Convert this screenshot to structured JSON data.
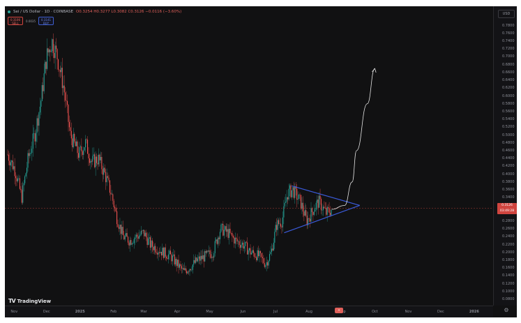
{
  "header": {
    "symbol": "Sei / US Dollar · 1D · COINBASE",
    "ohlc": "O0.3254 H0.3277 L0.3082 C0.3126 −0.0116 (−3.60%)",
    "sell_button": "0.3106\nSELL",
    "buy_button": "0.3141\nBUY",
    "spread": "0.0035"
  },
  "price_axis": {
    "currency": "USD",
    "last_price": "0.3126",
    "last_price_sub": "03:49:28",
    "ticks": [
      "0.7800",
      "0.7600",
      "0.7400",
      "0.7200",
      "0.7000",
      "0.6800",
      "0.6600",
      "0.6400",
      "0.6200",
      "0.6000",
      "0.5800",
      "0.5600",
      "0.5400",
      "0.5200",
      "0.5000",
      "0.4800",
      "0.4600",
      "0.4400",
      "0.4200",
      "0.4000",
      "0.3800",
      "0.3600",
      "0.3400",
      "0.3200",
      "0.3000",
      "0.2800",
      "0.2600",
      "0.2400",
      "0.2200",
      "0.2000",
      "0.1800",
      "0.1600",
      "0.1400",
      "0.1200",
      "0.1000",
      "0.0800"
    ]
  },
  "time_axis": {
    "ticks": [
      "Nov",
      "Dec",
      "2025",
      "Feb",
      "Mar",
      "Apr",
      "May",
      "Jun",
      "Jul",
      "Aug",
      "Sep",
      "Oct",
      "Nov",
      "Dec",
      "2026"
    ]
  },
  "branding": {
    "logo_text": "TradingView",
    "logo_mark": "TV"
  },
  "colors": {
    "background": "#111112",
    "up": "#26a69a",
    "down": "#ef5350",
    "triangle": "#3b5bdb",
    "projection": "#e6e6e6",
    "last_price": "#d0453f"
  },
  "icons": {
    "settings": "gear-icon",
    "realtime": "go-to-realtime-icon"
  },
  "chart_data": {
    "type": "candlestick",
    "title": "Sei / US Dollar · 1D · COINBASE",
    "x_ticks": [
      "Nov",
      "Dec",
      "2025",
      "Feb",
      "Mar",
      "Apr",
      "May",
      "Jun",
      "Jul",
      "Aug",
      "Sep",
      "Oct",
      "Nov",
      "Dec",
      "2026"
    ],
    "ylim": [
      0.08,
      0.79
    ],
    "price_path": [
      [
        "2024-10-26",
        0.45
      ],
      [
        "2024-11-02",
        0.41
      ],
      [
        "2024-11-08",
        0.34
      ],
      [
        "2024-11-14",
        0.44
      ],
      [
        "2024-11-20",
        0.5
      ],
      [
        "2024-11-26",
        0.59
      ],
      [
        "2024-12-01",
        0.7
      ],
      [
        "2024-12-06",
        0.74
      ],
      [
        "2024-12-11",
        0.7
      ],
      [
        "2024-12-17",
        0.62
      ],
      [
        "2024-12-23",
        0.5
      ],
      [
        "2024-12-31",
        0.45
      ],
      [
        "2025-01-06",
        0.48
      ],
      [
        "2025-01-12",
        0.43
      ],
      [
        "2025-01-18",
        0.44
      ],
      [
        "2025-01-24",
        0.4
      ],
      [
        "2025-01-30",
        0.35
      ],
      [
        "2025-02-04",
        0.29
      ],
      [
        "2025-02-10",
        0.24
      ],
      [
        "2025-02-16",
        0.23
      ],
      [
        "2025-02-22",
        0.24
      ],
      [
        "2025-03-01",
        0.25
      ],
      [
        "2025-03-07",
        0.22
      ],
      [
        "2025-03-13",
        0.21
      ],
      [
        "2025-03-19",
        0.2
      ],
      [
        "2025-03-26",
        0.19
      ],
      [
        "2025-04-01",
        0.17
      ],
      [
        "2025-04-07",
        0.15
      ],
      [
        "2025-04-12",
        0.16
      ],
      [
        "2025-04-20",
        0.18
      ],
      [
        "2025-04-27",
        0.19
      ],
      [
        "2025-05-04",
        0.2
      ],
      [
        "2025-05-11",
        0.26
      ],
      [
        "2025-05-18",
        0.25
      ],
      [
        "2025-05-25",
        0.23
      ],
      [
        "2025-06-01",
        0.22
      ],
      [
        "2025-06-08",
        0.2
      ],
      [
        "2025-06-16",
        0.19
      ],
      [
        "2025-06-22",
        0.17
      ],
      [
        "2025-06-27",
        0.2
      ],
      [
        "2025-07-02",
        0.27
      ],
      [
        "2025-07-07",
        0.28
      ],
      [
        "2025-07-12",
        0.35
      ],
      [
        "2025-07-17",
        0.36
      ],
      [
        "2025-07-24",
        0.33
      ],
      [
        "2025-07-30",
        0.28
      ],
      [
        "2025-08-05",
        0.31
      ],
      [
        "2025-08-10",
        0.33
      ],
      [
        "2025-08-17",
        0.3
      ],
      [
        "2025-08-22",
        0.31
      ]
    ],
    "triangle_pattern": {
      "upper_line": [
        [
          "2025-07-16",
          0.37
        ],
        [
          "2025-09-17",
          0.32
        ]
      ],
      "lower_line": [
        [
          "2025-07-09",
          0.25
        ],
        [
          "2025-09-17",
          0.32
        ]
      ]
    },
    "projection_path": [
      [
        "2025-08-22",
        0.31
      ],
      [
        "2025-09-03",
        0.32
      ],
      [
        "2025-09-10",
        0.38
      ],
      [
        "2025-09-14",
        0.46
      ],
      [
        "2025-09-24",
        0.58
      ],
      [
        "2025-10-01",
        0.67
      ]
    ],
    "last_price": 0.3126,
    "grid": false,
    "legend": "none"
  }
}
